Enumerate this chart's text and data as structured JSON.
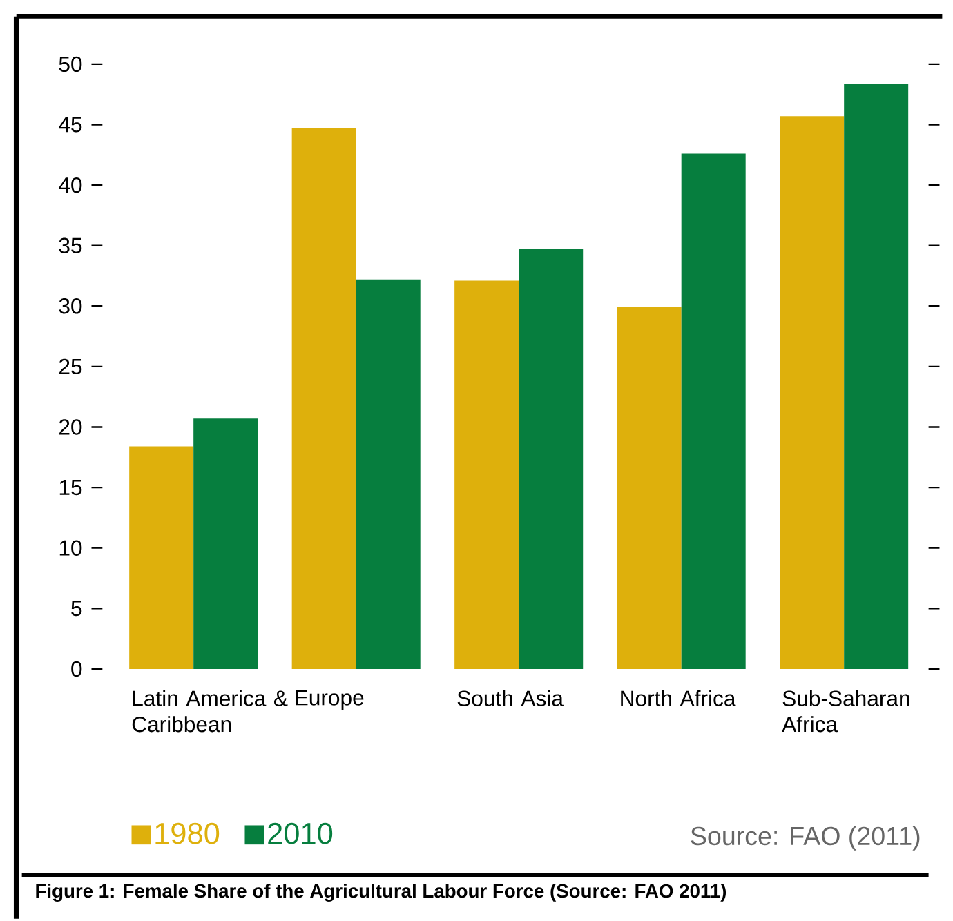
{
  "chart_data": {
    "type": "bar",
    "title": "**Figure 1: Female Share of the Agricultural Labour Force (Source: FAO 2011)**",
    "categories": [
      "Latin America & Caribbean",
      "Europe",
      "South Asia",
      "North Africa",
      "Sub-Saharan Africa"
    ],
    "series": [
      {
        "name": "1980",
        "color": "#deb00c",
        "values": [
          18.4,
          44.7,
          32.1,
          29.9,
          45.7
        ]
      },
      {
        "name": "2010",
        "color": "#067e3e",
        "values": [
          20.7,
          32.2,
          34.7,
          42.6,
          48.4
        ]
      }
    ],
    "ylim": [
      0,
      50
    ],
    "yticks": [
      0,
      5,
      10,
      15,
      20,
      25,
      30,
      35,
      40,
      45,
      50
    ],
    "legend": "bottom left",
    "annotations": [
      "Source: FAO (2011)"
    ],
    "grid": false
  }
}
